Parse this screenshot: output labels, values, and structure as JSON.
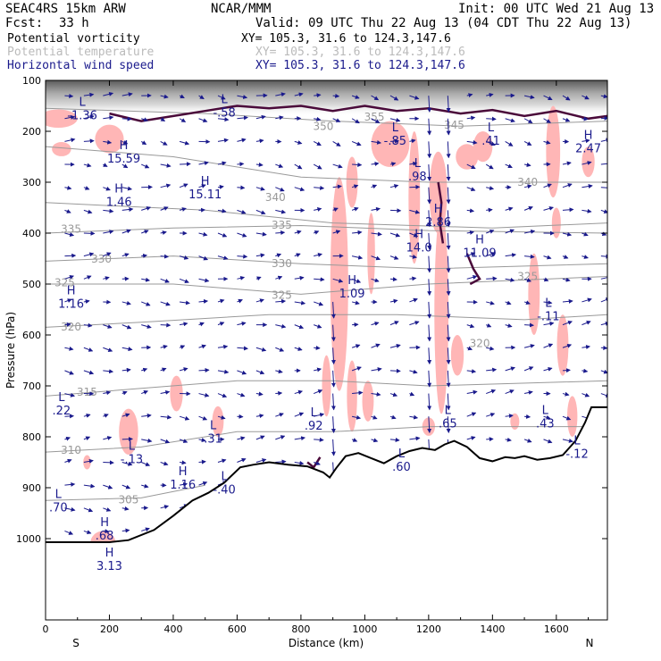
{
  "header": {
    "model": "SEAC4RS 15km ARW",
    "center": "NCAR/MMM",
    "init": "Init: 00 UTC Wed 21 Aug 13",
    "fcst_label": "Fcst:",
    "fcst_value": "33 h",
    "valid": "Valid: 09 UTC Thu 22 Aug 13 (04 CDT Thu 22 Aug 13)"
  },
  "legend": [
    {
      "name": "Potential vorticity",
      "xy": "XY= 105.3, 31.6 to 124.3,147.6",
      "color": "#000000"
    },
    {
      "name": "Potential temperature",
      "xy": "XY= 105.3, 31.6 to 124.3,147.6",
      "color": "#bbbbbb"
    },
    {
      "name": "Horizontal wind speed",
      "xy": "XY= 105.3, 31.6 to 124.3,147.6",
      "color": "#1a1a8c"
    }
  ],
  "colors": {
    "pv_shade": "#ffb6b6",
    "theta": "#999999",
    "wind": "#1a1a8c",
    "pv_contour": "#4a0a3a"
  },
  "chart_data": {
    "type": "cross-section",
    "xlabel": "Distance (km)",
    "ylabel": "Pressure (hPa)",
    "xlim": [
      0,
      1760
    ],
    "ylim": [
      1050,
      100
    ],
    "x_ticks": [
      "0",
      "200",
      "400",
      "600",
      "800",
      "1000",
      "1200",
      "1400",
      "1600"
    ],
    "y_ticks": [
      "100",
      "200",
      "300",
      "400",
      "500",
      "600",
      "700",
      "800",
      "900",
      "1000"
    ],
    "x_end_labels": {
      "left": "S",
      "right": "N"
    },
    "theta_labels": [
      {
        "text": "355",
        "x": 1030,
        "p": 172
      },
      {
        "text": "350",
        "x": 870,
        "p": 190
      },
      {
        "text": "345",
        "x": 1280,
        "p": 188
      },
      {
        "text": "340",
        "x": 720,
        "p": 330
      },
      {
        "text": "340",
        "x": 1510,
        "p": 300
      },
      {
        "text": "335",
        "x": 80,
        "p": 392
      },
      {
        "text": "335",
        "x": 740,
        "p": 384
      },
      {
        "text": "330",
        "x": 175,
        "p": 451
      },
      {
        "text": "330",
        "x": 740,
        "p": 460
      },
      {
        "text": "325",
        "x": 60,
        "p": 497
      },
      {
        "text": "325",
        "x": 740,
        "p": 522
      },
      {
        "text": "325",
        "x": 1510,
        "p": 485
      },
      {
        "text": "320",
        "x": 80,
        "p": 584
      },
      {
        "text": "320",
        "x": 1360,
        "p": 617
      },
      {
        "text": "315",
        "x": 130,
        "p": 712
      },
      {
        "text": "310",
        "x": 80,
        "p": 826
      },
      {
        "text": "305",
        "x": 260,
        "p": 924
      }
    ],
    "pv_extrema": [
      {
        "type": "L",
        "value": "-1.36",
        "x": 115,
        "p": 150
      },
      {
        "type": "H",
        "value": "15.59",
        "x": 245,
        "p": 235
      },
      {
        "type": "H",
        "value": "1.46",
        "x": 230,
        "p": 320
      },
      {
        "type": "H",
        "value": "15.11",
        "x": 500,
        "p": 305
      },
      {
        "type": "L",
        "value": "-.58",
        "x": 560,
        "p": 145
      },
      {
        "type": "L",
        "value": "-.85",
        "x": 1095,
        "p": 200
      },
      {
        "type": "L",
        "value": ".98",
        "x": 1165,
        "p": 270
      },
      {
        "type": "H",
        "value": "2.86",
        "x": 1230,
        "p": 360
      },
      {
        "type": "H",
        "value": "14.0",
        "x": 1170,
        "p": 410
      },
      {
        "type": "H",
        "value": "11.09",
        "x": 1360,
        "p": 420
      },
      {
        "type": "L",
        "value": ".41",
        "x": 1395,
        "p": 200
      },
      {
        "type": "H",
        "value": "2.47",
        "x": 1700,
        "p": 215
      },
      {
        "type": "H",
        "value": "1.16",
        "x": 80,
        "p": 520
      },
      {
        "type": "H",
        "value": "1.09",
        "x": 960,
        "p": 500
      },
      {
        "type": "L",
        "value": "-.11",
        "x": 1575,
        "p": 545
      },
      {
        "type": "L",
        "value": ".22",
        "x": 50,
        "p": 730
      },
      {
        "type": "L",
        "value": ".92",
        "x": 840,
        "p": 760
      },
      {
        "type": "L",
        "value": ".65",
        "x": 1260,
        "p": 755
      },
      {
        "type": "L",
        "value": ".43",
        "x": 1565,
        "p": 755
      },
      {
        "type": "L",
        "value": ".31",
        "x": 525,
        "p": 785
      },
      {
        "type": "L",
        "value": "-.13",
        "x": 270,
        "p": 825
      },
      {
        "type": "L",
        "value": "-.12",
        "x": 1665,
        "p": 815
      },
      {
        "type": "H",
        "value": "1.16",
        "x": 430,
        "p": 875
      },
      {
        "type": "L",
        "value": ".60",
        "x": 1115,
        "p": 840
      },
      {
        "type": "L",
        "value": "-.40",
        "x": 560,
        "p": 885
      },
      {
        "type": "L",
        "value": ".70",
        "x": 40,
        "p": 920
      },
      {
        "type": "H",
        "value": ".68",
        "x": 185,
        "p": 975
      },
      {
        "type": "H",
        "value": "3.13",
        "x": 200,
        "p": 1035
      }
    ],
    "terrain_p": [
      [
        0,
        1007
      ],
      [
        200,
        1007
      ],
      [
        260,
        1003
      ],
      [
        340,
        983
      ],
      [
        400,
        955
      ],
      [
        460,
        925
      ],
      [
        510,
        910
      ],
      [
        560,
        890
      ],
      [
        610,
        860
      ],
      [
        650,
        855
      ],
      [
        700,
        850
      ],
      [
        760,
        855
      ],
      [
        820,
        858
      ],
      [
        870,
        870
      ],
      [
        890,
        880
      ],
      [
        910,
        862
      ],
      [
        940,
        838
      ],
      [
        980,
        832
      ],
      [
        1020,
        842
      ],
      [
        1060,
        852
      ],
      [
        1100,
        838
      ],
      [
        1140,
        828
      ],
      [
        1180,
        822
      ],
      [
        1220,
        826
      ],
      [
        1250,
        815
      ],
      [
        1280,
        808
      ],
      [
        1320,
        820
      ],
      [
        1360,
        842
      ],
      [
        1400,
        848
      ],
      [
        1440,
        840
      ],
      [
        1470,
        842
      ],
      [
        1500,
        838
      ],
      [
        1540,
        845
      ],
      [
        1580,
        842
      ],
      [
        1620,
        836
      ],
      [
        1660,
        808
      ],
      [
        1690,
        772
      ],
      [
        1710,
        742
      ],
      [
        1730,
        742
      ],
      [
        1760,
        742
      ]
    ]
  }
}
